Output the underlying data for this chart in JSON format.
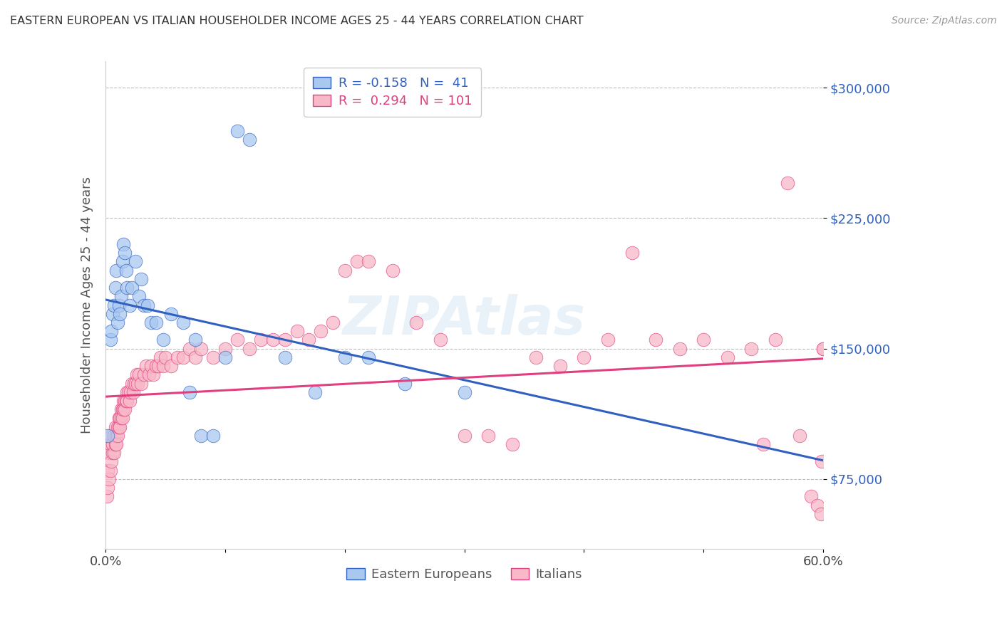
{
  "title": "EASTERN EUROPEAN VS ITALIAN HOUSEHOLDER INCOME AGES 25 - 44 YEARS CORRELATION CHART",
  "source": "Source: ZipAtlas.com",
  "ylabel": "Householder Income Ages 25 - 44 years",
  "xlim": [
    0.0,
    0.6
  ],
  "ylim": [
    35000,
    315000
  ],
  "yticks": [
    75000,
    150000,
    225000,
    300000
  ],
  "ytick_labels": [
    "$75,000",
    "$150,000",
    "$225,000",
    "$300,000"
  ],
  "xticks": [
    0.0,
    0.1,
    0.2,
    0.3,
    0.4,
    0.5,
    0.6
  ],
  "xtick_labels": [
    "0.0%",
    "",
    "",
    "",
    "",
    "",
    "60.0%"
  ],
  "blue_scatter_color": "#A8C8F0",
  "pink_scatter_color": "#F8B8C8",
  "line_blue": "#3060C0",
  "line_pink": "#E04080",
  "legend_R_blue": "-0.158",
  "legend_N_blue": "41",
  "legend_R_pink": "0.294",
  "legend_N_pink": "101",
  "background_color": "#FFFFFF",
  "grid_color": "#BBBBBB",
  "ee_x": [
    0.002,
    0.004,
    0.005,
    0.006,
    0.007,
    0.008,
    0.009,
    0.01,
    0.011,
    0.012,
    0.013,
    0.014,
    0.015,
    0.016,
    0.017,
    0.018,
    0.02,
    0.022,
    0.025,
    0.028,
    0.03,
    0.032,
    0.035,
    0.038,
    0.042,
    0.048,
    0.055,
    0.065,
    0.07,
    0.075,
    0.08,
    0.09,
    0.1,
    0.11,
    0.12,
    0.15,
    0.175,
    0.2,
    0.22,
    0.25,
    0.3
  ],
  "ee_y": [
    100000,
    155000,
    160000,
    170000,
    175000,
    185000,
    195000,
    165000,
    175000,
    170000,
    180000,
    200000,
    210000,
    205000,
    195000,
    185000,
    175000,
    185000,
    200000,
    180000,
    190000,
    175000,
    175000,
    165000,
    165000,
    155000,
    170000,
    165000,
    125000,
    155000,
    100000,
    100000,
    145000,
    275000,
    270000,
    145000,
    125000,
    145000,
    145000,
    130000,
    125000
  ],
  "it_x": [
    0.001,
    0.002,
    0.002,
    0.003,
    0.003,
    0.004,
    0.004,
    0.005,
    0.005,
    0.006,
    0.006,
    0.007,
    0.007,
    0.008,
    0.008,
    0.009,
    0.009,
    0.01,
    0.01,
    0.011,
    0.011,
    0.012,
    0.012,
    0.013,
    0.013,
    0.014,
    0.014,
    0.015,
    0.015,
    0.016,
    0.016,
    0.017,
    0.018,
    0.018,
    0.019,
    0.02,
    0.021,
    0.022,
    0.023,
    0.024,
    0.025,
    0.026,
    0.027,
    0.028,
    0.03,
    0.032,
    0.034,
    0.036,
    0.038,
    0.04,
    0.042,
    0.044,
    0.046,
    0.048,
    0.05,
    0.055,
    0.06,
    0.065,
    0.07,
    0.075,
    0.08,
    0.09,
    0.1,
    0.11,
    0.12,
    0.13,
    0.14,
    0.15,
    0.16,
    0.17,
    0.18,
    0.19,
    0.2,
    0.21,
    0.22,
    0.24,
    0.26,
    0.28,
    0.3,
    0.32,
    0.34,
    0.36,
    0.38,
    0.4,
    0.42,
    0.44,
    0.46,
    0.48,
    0.5,
    0.52,
    0.54,
    0.55,
    0.56,
    0.57,
    0.58,
    0.59,
    0.595,
    0.598,
    0.599,
    0.6,
    0.6
  ],
  "it_y": [
    65000,
    70000,
    80000,
    75000,
    90000,
    80000,
    95000,
    85000,
    100000,
    90000,
    95000,
    100000,
    90000,
    95000,
    105000,
    100000,
    95000,
    105000,
    100000,
    110000,
    105000,
    110000,
    105000,
    115000,
    110000,
    115000,
    110000,
    120000,
    115000,
    120000,
    115000,
    120000,
    125000,
    120000,
    125000,
    120000,
    125000,
    130000,
    125000,
    130000,
    130000,
    135000,
    130000,
    135000,
    130000,
    135000,
    140000,
    135000,
    140000,
    135000,
    140000,
    140000,
    145000,
    140000,
    145000,
    140000,
    145000,
    145000,
    150000,
    145000,
    150000,
    145000,
    150000,
    155000,
    150000,
    155000,
    155000,
    155000,
    160000,
    155000,
    160000,
    165000,
    195000,
    200000,
    200000,
    195000,
    165000,
    155000,
    100000,
    100000,
    95000,
    145000,
    140000,
    145000,
    155000,
    205000,
    155000,
    150000,
    155000,
    145000,
    150000,
    95000,
    155000,
    245000,
    100000,
    65000,
    60000,
    55000,
    85000,
    150000,
    150000
  ]
}
